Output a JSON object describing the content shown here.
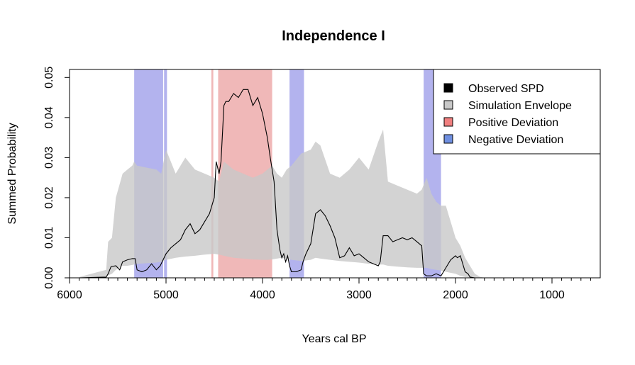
{
  "chart_data": {
    "type": "area",
    "title": "Independence I",
    "xlabel": "Years cal BP",
    "ylabel": "Summed Probability",
    "xlim": [
      6000,
      500
    ],
    "ylim": [
      0,
      0.052
    ],
    "x_reversed": true,
    "x_ticks": [
      6000,
      5000,
      4000,
      3000,
      2000,
      1000
    ],
    "x_tick_labels": [
      "6000",
      "5000",
      "4000",
      "3000",
      "2000",
      "1000"
    ],
    "y_ticks": [
      0,
      0.01,
      0.02,
      0.03,
      0.04,
      0.05
    ],
    "y_tick_labels": [
      "0.00",
      "0.01",
      "0.02",
      "0.03",
      "0.04",
      "0.05"
    ],
    "legend_position": "top-right",
    "legend": [
      {
        "label": "Observed SPD",
        "color": "#000000"
      },
      {
        "label": "Simulation Envelope",
        "color": "#c8c8c8"
      },
      {
        "label": "Positive Deviation",
        "color": "#f07f7f"
      },
      {
        "label": "Negative Deviation",
        "color": "#6f8fe0"
      }
    ],
    "colors": {
      "observed": "#000000",
      "envelope": "#c8c8c8",
      "positive_band": "#f0b8b8",
      "negative_band": "#b3b3ee",
      "positive_key": "#f07f7f",
      "negative_key": "#6f8fe0"
    },
    "negative_deviation_ranges": [
      [
        5330,
        5030
      ],
      [
        5020,
        4990
      ],
      [
        3720,
        3570
      ],
      [
        2330,
        2150
      ]
    ],
    "positive_deviation_ranges": [
      [
        4530,
        4510
      ],
      [
        4460,
        3900
      ]
    ],
    "envelope": {
      "x": [
        5900,
        5620,
        5600,
        5560,
        5520,
        5450,
        5400,
        5350,
        5330,
        5300,
        5100,
        5050,
        5000,
        4900,
        4800,
        4700,
        4600,
        4500,
        4450,
        4400,
        4300,
        4200,
        4100,
        4000,
        3950,
        3900,
        3850,
        3800,
        3750,
        3700,
        3600,
        3500,
        3450,
        3400,
        3300,
        3200,
        3100,
        3000,
        2900,
        2800,
        2750,
        2700,
        2600,
        2500,
        2400,
        2350,
        2300,
        2250,
        2200,
        2150,
        2100,
        2000,
        1950,
        1900,
        1850,
        1800,
        1750,
        1700
      ],
      "upper": [
        0.0002,
        0.002,
        0.009,
        0.01,
        0.02,
        0.026,
        0.027,
        0.028,
        0.029,
        0.028,
        0.027,
        0.026,
        0.032,
        0.026,
        0.03,
        0.027,
        0.026,
        0.025,
        0.024,
        0.029,
        0.027,
        0.026,
        0.025,
        0.026,
        0.027,
        0.028,
        0.026,
        0.025,
        0.027,
        0.028,
        0.031,
        0.032,
        0.034,
        0.033,
        0.026,
        0.025,
        0.027,
        0.03,
        0.027,
        0.034,
        0.037,
        0.024,
        0.023,
        0.022,
        0.021,
        0.022,
        0.025,
        0.021,
        0.019,
        0.018,
        0.018,
        0.01,
        0.008,
        0.005,
        0.003,
        0.001,
        0.0003,
        0
      ],
      "lower": [
        0,
        0.0001,
        0.0006,
        0.001,
        0.002,
        0.003,
        0.003,
        0.0032,
        0.0033,
        0.0035,
        0.0038,
        0.004,
        0.0045,
        0.005,
        0.0053,
        0.0055,
        0.0058,
        0.006,
        0.0058,
        0.0055,
        0.005,
        0.0048,
        0.0046,
        0.0045,
        0.0045,
        0.0046,
        0.0048,
        0.005,
        0.0048,
        0.0045,
        0.0042,
        0.0045,
        0.005,
        0.0048,
        0.0045,
        0.0042,
        0.004,
        0.0038,
        0.0035,
        0.0033,
        0.0033,
        0.003,
        0.0028,
        0.0026,
        0.0025,
        0.0025,
        0.0025,
        0.0022,
        0.002,
        0.0018,
        0.0015,
        0.001,
        0.0005,
        0.0002,
        0.0001,
        0,
        0,
        0
      ]
    },
    "observed_spd": {
      "x": [
        5900,
        5620,
        5600,
        5570,
        5520,
        5480,
        5450,
        5400,
        5350,
        5320,
        5300,
        5250,
        5200,
        5150,
        5100,
        5060,
        5000,
        4950,
        4900,
        4850,
        4800,
        4750,
        4700,
        4650,
        4600,
        4550,
        4500,
        4480,
        4450,
        4430,
        4400,
        4380,
        4350,
        4300,
        4250,
        4200,
        4150,
        4100,
        4050,
        4000,
        3950,
        3920,
        3880,
        3850,
        3820,
        3800,
        3780,
        3760,
        3740,
        3720,
        3700,
        3650,
        3600,
        3580,
        3550,
        3500,
        3450,
        3400,
        3350,
        3300,
        3250,
        3200,
        3150,
        3100,
        3050,
        3000,
        2950,
        2900,
        2850,
        2800,
        2780,
        2750,
        2700,
        2650,
        2600,
        2550,
        2500,
        2450,
        2400,
        2350,
        2330,
        2300,
        2250,
        2200,
        2150,
        2100,
        2050,
        2000,
        1980,
        1950,
        1900,
        1870,
        1850,
        1800
      ],
      "y": [
        0,
        0.0002,
        0.001,
        0.0028,
        0.003,
        0.002,
        0.004,
        0.0045,
        0.0048,
        0.0048,
        0.002,
        0.0015,
        0.002,
        0.0035,
        0.002,
        0.003,
        0.006,
        0.0075,
        0.0085,
        0.0095,
        0.012,
        0.0135,
        0.011,
        0.012,
        0.014,
        0.016,
        0.02,
        0.029,
        0.026,
        0.029,
        0.043,
        0.044,
        0.044,
        0.046,
        0.045,
        0.047,
        0.047,
        0.043,
        0.045,
        0.041,
        0.035,
        0.03,
        0.024,
        0.012,
        0.007,
        0.005,
        0.006,
        0.004,
        0.0055,
        0.003,
        0.0015,
        0.0015,
        0.002,
        0.004,
        0.006,
        0.0085,
        0.016,
        0.017,
        0.0155,
        0.013,
        0.01,
        0.005,
        0.0055,
        0.0075,
        0.0055,
        0.006,
        0.005,
        0.004,
        0.0035,
        0.003,
        0.004,
        0.0105,
        0.0105,
        0.009,
        0.0095,
        0.01,
        0.0095,
        0.01,
        0.009,
        0.008,
        0.001,
        0.0005,
        0.0005,
        0.001,
        0.0005,
        0.0025,
        0.0045,
        0.0055,
        0.005,
        0.0055,
        0.0015,
        0.001,
        0.0002,
        0
      ]
    }
  }
}
